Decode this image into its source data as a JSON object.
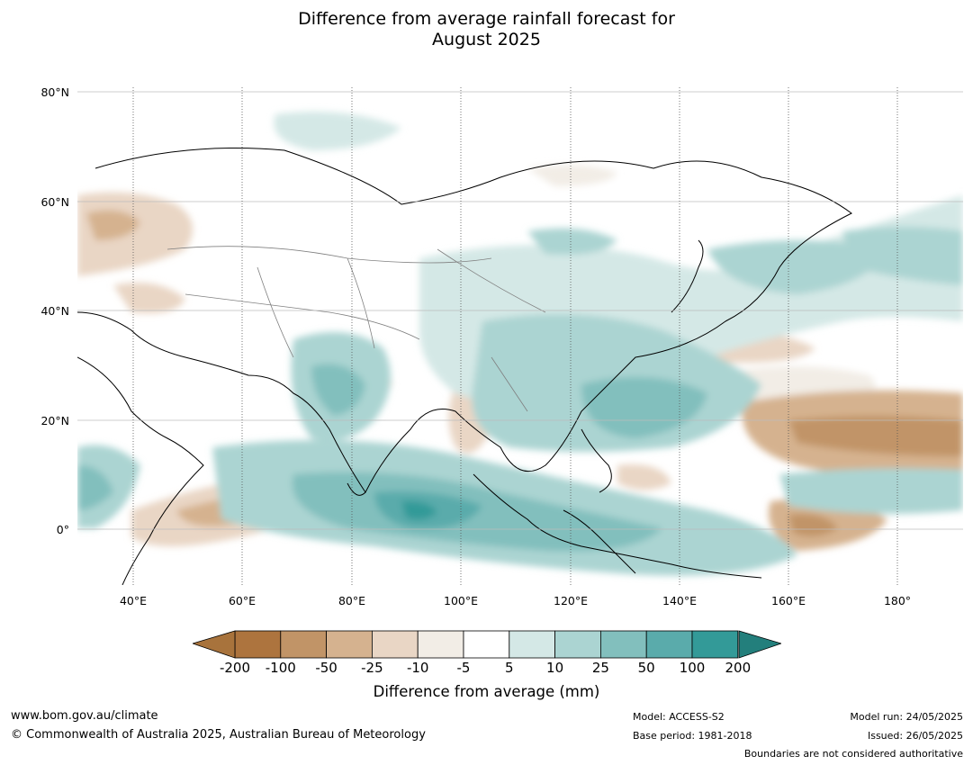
{
  "title_line1": "Difference from average rainfall forecast for",
  "title_line2": "August 2025",
  "lat_labels": [
    "80°N",
    "60°N",
    "40°N",
    "20°N",
    "0°"
  ],
  "lon_labels": [
    "40°E",
    "60°E",
    "80°E",
    "100°E",
    "120°E",
    "140°E",
    "160°E",
    "180°"
  ],
  "legend": {
    "title": "Difference from average (mm)",
    "ticks": [
      "-200",
      "-100",
      "-50",
      "-25",
      "-10",
      "-5",
      "5",
      "10",
      "25",
      "50",
      "100",
      "200"
    ],
    "colors": [
      "#a8733c",
      "#ad743e",
      "#c19467",
      "#d5b28f",
      "#e9d6c5",
      "#f2ede6",
      "#ffffff",
      "#d4e8e6",
      "#abd4d2",
      "#82bfbd",
      "#5aabab",
      "#339a98",
      "#237f7c"
    ]
  },
  "footer": {
    "url": "www.bom.gov.au/climate",
    "copyright": "© Commonwealth of Australia 2025, Australian Bureau of Meteorology",
    "model": "Model: ACCESS-S2",
    "base_period": "Base period: 1981-2018",
    "model_run": "Model run: 24/05/2025",
    "issued": "Issued: 26/05/2025",
    "disclaimer": "Boundaries are not considered authoritative"
  }
}
